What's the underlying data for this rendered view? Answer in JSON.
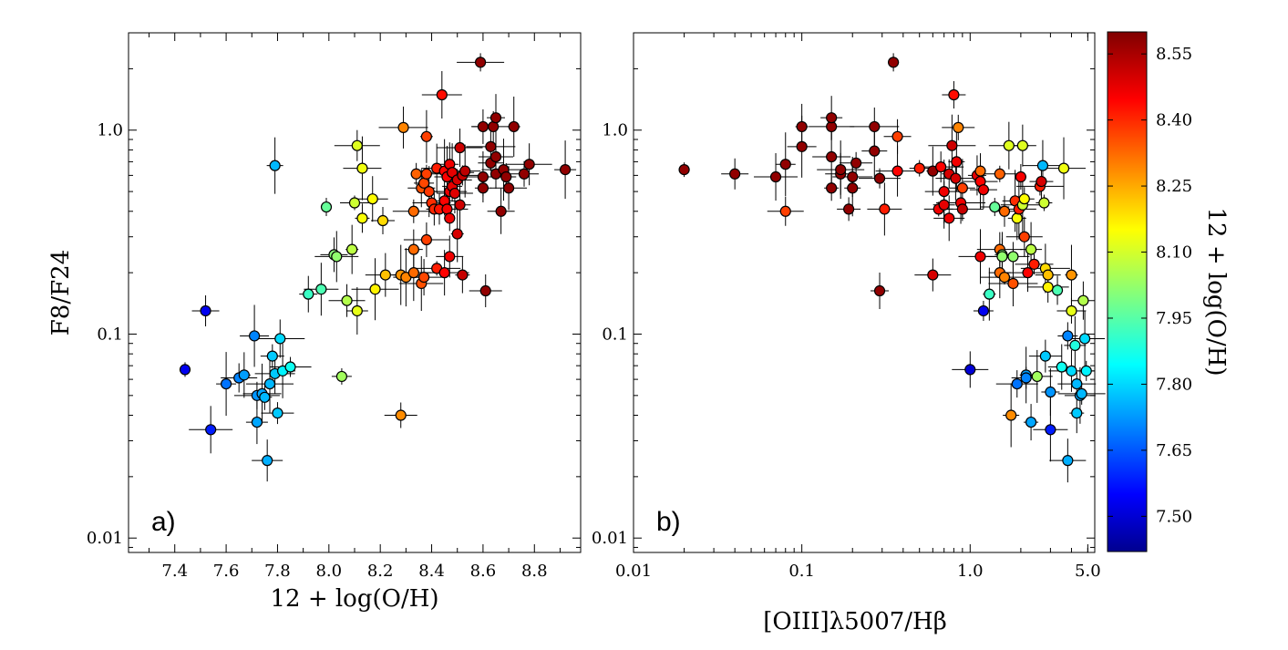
{
  "chart_data": [
    {
      "type": "scatter",
      "panel_label": "a)",
      "xlabel": "12 + log(O/H)",
      "ylabel": "F8/F24",
      "xscale": "linear",
      "yscale": "log",
      "xlim": [
        7.22,
        8.98
      ],
      "ylim": [
        0.0085,
        3.0
      ],
      "xticks": [
        "7.4",
        "7.6",
        "7.8",
        "8.0",
        "8.2",
        "8.4",
        "8.6",
        "8.8"
      ],
      "yticks": [
        "0.01",
        "0.1",
        "1.0"
      ],
      "grid": false,
      "points": [
        {
          "x": 7.44,
          "y": 0.067,
          "c": 7.55
        },
        {
          "x": 7.52,
          "y": 0.13,
          "c": 7.55
        },
        {
          "x": 7.54,
          "y": 0.034,
          "c": 7.6
        },
        {
          "x": 7.6,
          "y": 0.057,
          "c": 7.7
        },
        {
          "x": 7.65,
          "y": 0.061,
          "c": 7.72
        },
        {
          "x": 7.67,
          "y": 0.063,
          "c": 7.75
        },
        {
          "x": 7.71,
          "y": 0.098,
          "c": 7.72
        },
        {
          "x": 7.72,
          "y": 0.05,
          "c": 7.74
        },
        {
          "x": 7.72,
          "y": 0.037,
          "c": 7.76
        },
        {
          "x": 7.74,
          "y": 0.051,
          "c": 7.76
        },
        {
          "x": 7.75,
          "y": 0.049,
          "c": 7.78
        },
        {
          "x": 7.76,
          "y": 0.024,
          "c": 7.77
        },
        {
          "x": 7.77,
          "y": 0.057,
          "c": 7.78
        },
        {
          "x": 7.78,
          "y": 0.078,
          "c": 7.8
        },
        {
          "x": 7.79,
          "y": 0.064,
          "c": 7.8
        },
        {
          "x": 7.79,
          "y": 0.67,
          "c": 7.78
        },
        {
          "x": 7.8,
          "y": 0.041,
          "c": 7.8
        },
        {
          "x": 7.81,
          "y": 0.095,
          "c": 7.82
        },
        {
          "x": 7.82,
          "y": 0.066,
          "c": 7.85
        },
        {
          "x": 7.85,
          "y": 0.069,
          "c": 7.88
        },
        {
          "x": 7.92,
          "y": 0.157,
          "c": 7.93
        },
        {
          "x": 7.97,
          "y": 0.166,
          "c": 7.95
        },
        {
          "x": 7.99,
          "y": 0.42,
          "c": 7.98
        },
        {
          "x": 8.02,
          "y": 0.245,
          "c": 8.02
        },
        {
          "x": 8.03,
          "y": 0.24,
          "c": 8.03
        },
        {
          "x": 8.05,
          "y": 0.062,
          "c": 8.05
        },
        {
          "x": 8.07,
          "y": 0.146,
          "c": 8.07
        },
        {
          "x": 8.09,
          "y": 0.26,
          "c": 8.08
        },
        {
          "x": 8.1,
          "y": 0.44,
          "c": 8.1
        },
        {
          "x": 8.11,
          "y": 0.84,
          "c": 8.12
        },
        {
          "x": 8.11,
          "y": 0.13,
          "c": 8.13
        },
        {
          "x": 8.13,
          "y": 0.65,
          "c": 8.14
        },
        {
          "x": 8.13,
          "y": 0.37,
          "c": 8.15
        },
        {
          "x": 8.17,
          "y": 0.46,
          "c": 8.16
        },
        {
          "x": 8.18,
          "y": 0.166,
          "c": 8.17
        },
        {
          "x": 8.21,
          "y": 0.36,
          "c": 8.2
        },
        {
          "x": 8.22,
          "y": 0.195,
          "c": 8.23
        },
        {
          "x": 8.28,
          "y": 0.195,
          "c": 8.28
        },
        {
          "x": 8.28,
          "y": 0.04,
          "c": 8.29
        },
        {
          "x": 8.29,
          "y": 1.03,
          "c": 8.3
        },
        {
          "x": 8.3,
          "y": 0.19,
          "c": 8.3
        },
        {
          "x": 8.33,
          "y": 0.4,
          "c": 8.33
        },
        {
          "x": 8.33,
          "y": 0.26,
          "c": 8.33
        },
        {
          "x": 8.33,
          "y": 0.2,
          "c": 8.33
        },
        {
          "x": 8.34,
          "y": 0.61,
          "c": 8.34
        },
        {
          "x": 8.36,
          "y": 0.52,
          "c": 8.36
        },
        {
          "x": 8.36,
          "y": 0.177,
          "c": 8.36
        },
        {
          "x": 8.37,
          "y": 0.55,
          "c": 8.37
        },
        {
          "x": 8.37,
          "y": 0.19,
          "c": 8.37
        },
        {
          "x": 8.38,
          "y": 0.93,
          "c": 8.38
        },
        {
          "x": 8.38,
          "y": 0.61,
          "c": 8.38
        },
        {
          "x": 8.38,
          "y": 0.29,
          "c": 8.38
        },
        {
          "x": 8.39,
          "y": 0.5,
          "c": 8.39
        },
        {
          "x": 8.4,
          "y": 0.44,
          "c": 8.4
        },
        {
          "x": 8.41,
          "y": 0.41,
          "c": 8.41
        },
        {
          "x": 8.42,
          "y": 0.65,
          "c": 8.42
        },
        {
          "x": 8.42,
          "y": 0.21,
          "c": 8.42
        },
        {
          "x": 8.43,
          "y": 0.41,
          "c": 8.43
        },
        {
          "x": 8.44,
          "y": 1.49,
          "c": 8.44
        },
        {
          "x": 8.45,
          "y": 0.63,
          "c": 8.45
        },
        {
          "x": 8.45,
          "y": 0.45,
          "c": 8.45
        },
        {
          "x": 8.45,
          "y": 0.2,
          "c": 8.45
        },
        {
          "x": 8.46,
          "y": 0.59,
          "c": 8.46
        },
        {
          "x": 8.46,
          "y": 0.41,
          "c": 8.46
        },
        {
          "x": 8.47,
          "y": 0.68,
          "c": 8.47
        },
        {
          "x": 8.47,
          "y": 0.5,
          "c": 8.47
        },
        {
          "x": 8.47,
          "y": 0.37,
          "c": 8.47
        },
        {
          "x": 8.47,
          "y": 0.24,
          "c": 8.47
        },
        {
          "x": 8.48,
          "y": 0.62,
          "c": 8.48
        },
        {
          "x": 8.48,
          "y": 0.53,
          "c": 8.48
        },
        {
          "x": 8.49,
          "y": 0.49,
          "c": 8.49
        },
        {
          "x": 8.5,
          "y": 0.31,
          "c": 8.5
        },
        {
          "x": 8.5,
          "y": 0.57,
          "c": 8.5
        },
        {
          "x": 8.51,
          "y": 0.82,
          "c": 8.51
        },
        {
          "x": 8.51,
          "y": 0.43,
          "c": 8.51
        },
        {
          "x": 8.52,
          "y": 0.6,
          "c": 8.52
        },
        {
          "x": 8.52,
          "y": 0.195,
          "c": 8.52
        },
        {
          "x": 8.53,
          "y": 0.63,
          "c": 8.53
        },
        {
          "x": 8.59,
          "y": 2.15,
          "c": 8.58
        },
        {
          "x": 8.6,
          "y": 1.04,
          "c": 8.58
        },
        {
          "x": 8.6,
          "y": 0.59,
          "c": 8.58
        },
        {
          "x": 8.6,
          "y": 0.52,
          "c": 8.58
        },
        {
          "x": 8.61,
          "y": 0.163,
          "c": 8.58
        },
        {
          "x": 8.63,
          "y": 0.83,
          "c": 8.58
        },
        {
          "x": 8.63,
          "y": 0.69,
          "c": 8.58
        },
        {
          "x": 8.64,
          "y": 1.04,
          "c": 8.58
        },
        {
          "x": 8.65,
          "y": 1.15,
          "c": 8.58
        },
        {
          "x": 8.65,
          "y": 0.74,
          "c": 8.58
        },
        {
          "x": 8.65,
          "y": 0.61,
          "c": 8.58
        },
        {
          "x": 8.67,
          "y": 0.4,
          "c": 8.58
        },
        {
          "x": 8.68,
          "y": 0.64,
          "c": 8.58
        },
        {
          "x": 8.69,
          "y": 0.59,
          "c": 8.58
        },
        {
          "x": 8.7,
          "y": 0.52,
          "c": 8.58
        },
        {
          "x": 8.72,
          "y": 1.04,
          "c": 8.58
        },
        {
          "x": 8.76,
          "y": 0.61,
          "c": 8.58
        },
        {
          "x": 8.78,
          "y": 0.68,
          "c": 8.58
        },
        {
          "x": 8.92,
          "y": 0.64,
          "c": 8.58
        }
      ]
    },
    {
      "type": "scatter",
      "panel_label": "b)",
      "xlabel": "[OIII]λ5007/Hβ",
      "xscale": "log",
      "yscale": "log",
      "xlim": [
        0.01,
        5.5
      ],
      "ylim": [
        0.0085,
        3.0
      ],
      "xticks": [
        "0.01",
        "0.1",
        "1.0",
        "5.0"
      ],
      "yticks": [
        "0.01",
        "0.1",
        "1.0"
      ],
      "grid": false,
      "points": [
        {
          "x": 0.02,
          "y": 0.64,
          "c": 8.58
        },
        {
          "x": 0.04,
          "y": 0.61,
          "c": 8.58
        },
        {
          "x": 0.07,
          "y": 0.59,
          "c": 8.58
        },
        {
          "x": 0.08,
          "y": 0.68,
          "c": 8.58
        },
        {
          "x": 0.08,
          "y": 0.4,
          "c": 8.38
        },
        {
          "x": 0.1,
          "y": 1.04,
          "c": 8.58
        },
        {
          "x": 0.1,
          "y": 0.83,
          "c": 8.58
        },
        {
          "x": 0.15,
          "y": 1.04,
          "c": 8.58
        },
        {
          "x": 0.15,
          "y": 1.15,
          "c": 8.58
        },
        {
          "x": 0.15,
          "y": 0.74,
          "c": 8.58
        },
        {
          "x": 0.15,
          "y": 0.52,
          "c": 8.58
        },
        {
          "x": 0.17,
          "y": 0.61,
          "c": 8.58
        },
        {
          "x": 0.17,
          "y": 0.64,
          "c": 8.58
        },
        {
          "x": 0.19,
          "y": 0.41,
          "c": 8.58
        },
        {
          "x": 0.2,
          "y": 0.59,
          "c": 8.58
        },
        {
          "x": 0.2,
          "y": 0.52,
          "c": 8.58
        },
        {
          "x": 0.21,
          "y": 0.69,
          "c": 8.58
        },
        {
          "x": 0.27,
          "y": 1.04,
          "c": 8.58
        },
        {
          "x": 0.27,
          "y": 0.79,
          "c": 8.58
        },
        {
          "x": 0.29,
          "y": 0.58,
          "c": 8.58
        },
        {
          "x": 0.29,
          "y": 0.163,
          "c": 8.58
        },
        {
          "x": 0.31,
          "y": 0.41,
          "c": 8.42
        },
        {
          "x": 0.35,
          "y": 2.15,
          "c": 8.58
        },
        {
          "x": 0.37,
          "y": 0.93,
          "c": 8.38
        },
        {
          "x": 0.37,
          "y": 0.63,
          "c": 8.45
        },
        {
          "x": 0.5,
          "y": 0.65,
          "c": 8.42
        },
        {
          "x": 0.6,
          "y": 0.195,
          "c": 8.5
        },
        {
          "x": 0.6,
          "y": 0.63,
          "c": 8.58
        },
        {
          "x": 0.65,
          "y": 0.41,
          "c": 8.47
        },
        {
          "x": 0.67,
          "y": 0.66,
          "c": 8.45
        },
        {
          "x": 0.7,
          "y": 0.43,
          "c": 8.48
        },
        {
          "x": 0.7,
          "y": 0.5,
          "c": 8.47
        },
        {
          "x": 0.75,
          "y": 0.61,
          "c": 8.5
        },
        {
          "x": 0.75,
          "y": 0.37,
          "c": 8.47
        },
        {
          "x": 0.78,
          "y": 0.84,
          "c": 8.51
        },
        {
          "x": 0.8,
          "y": 1.49,
          "c": 8.44
        },
        {
          "x": 0.82,
          "y": 0.58,
          "c": 8.5
        },
        {
          "x": 0.83,
          "y": 0.7,
          "c": 8.47
        },
        {
          "x": 0.85,
          "y": 1.03,
          "c": 8.3
        },
        {
          "x": 0.88,
          "y": 0.44,
          "c": 8.47
        },
        {
          "x": 0.9,
          "y": 0.52,
          "c": 8.38
        },
        {
          "x": 0.9,
          "y": 0.41,
          "c": 8.52
        },
        {
          "x": 1.1,
          "y": 0.6,
          "c": 8.48
        },
        {
          "x": 1.15,
          "y": 0.56,
          "c": 8.45
        },
        {
          "x": 1.15,
          "y": 0.63,
          "c": 8.33
        },
        {
          "x": 1.2,
          "y": 0.51,
          "c": 8.47
        },
        {
          "x": 1.15,
          "y": 0.24,
          "c": 8.47
        },
        {
          "x": 1.2,
          "y": 0.13,
          "c": 7.55
        },
        {
          "x": 1.0,
          "y": 0.067,
          "c": 7.52
        },
        {
          "x": 1.3,
          "y": 0.157,
          "c": 7.93
        },
        {
          "x": 1.4,
          "y": 0.42,
          "c": 7.98
        },
        {
          "x": 1.5,
          "y": 0.26,
          "c": 8.33
        },
        {
          "x": 1.5,
          "y": 0.2,
          "c": 8.33
        },
        {
          "x": 1.5,
          "y": 0.61,
          "c": 8.34
        },
        {
          "x": 1.55,
          "y": 0.245,
          "c": 8.02
        },
        {
          "x": 1.55,
          "y": 0.24,
          "c": 8.03
        },
        {
          "x": 1.6,
          "y": 0.19,
          "c": 8.3
        },
        {
          "x": 1.6,
          "y": 0.4,
          "c": 8.33
        },
        {
          "x": 1.7,
          "y": 0.84,
          "c": 8.12
        },
        {
          "x": 1.75,
          "y": 0.04,
          "c": 8.29
        },
        {
          "x": 1.8,
          "y": 0.24,
          "c": 8.03
        },
        {
          "x": 1.8,
          "y": 0.177,
          "c": 8.36
        },
        {
          "x": 1.85,
          "y": 0.45,
          "c": 8.4
        },
        {
          "x": 1.9,
          "y": 0.057,
          "c": 7.7
        },
        {
          "x": 1.9,
          "y": 0.37,
          "c": 8.15
        },
        {
          "x": 1.95,
          "y": 0.41,
          "c": 8.42
        },
        {
          "x": 2.0,
          "y": 0.59,
          "c": 8.46
        },
        {
          "x": 2.05,
          "y": 0.84,
          "c": 8.12
        },
        {
          "x": 2.05,
          "y": 0.43,
          "c": 8.1
        },
        {
          "x": 2.1,
          "y": 0.46,
          "c": 8.16
        },
        {
          "x": 2.1,
          "y": 0.3,
          "c": 8.38
        },
        {
          "x": 2.15,
          "y": 0.063,
          "c": 7.75
        },
        {
          "x": 2.15,
          "y": 0.061,
          "c": 7.72
        },
        {
          "x": 2.2,
          "y": 0.2,
          "c": 8.45
        },
        {
          "x": 2.3,
          "y": 0.26,
          "c": 8.08
        },
        {
          "x": 2.4,
          "y": 0.22,
          "c": 8.42
        },
        {
          "x": 2.3,
          "y": 0.037,
          "c": 7.76
        },
        {
          "x": 2.5,
          "y": 0.062,
          "c": 8.05
        },
        {
          "x": 2.6,
          "y": 0.53,
          "c": 8.42
        },
        {
          "x": 2.65,
          "y": 0.56,
          "c": 8.5
        },
        {
          "x": 2.7,
          "y": 0.67,
          "c": 7.78
        },
        {
          "x": 2.75,
          "y": 0.44,
          "c": 8.1
        },
        {
          "x": 2.8,
          "y": 0.078,
          "c": 7.8
        },
        {
          "x": 2.8,
          "y": 0.21,
          "c": 8.2
        },
        {
          "x": 2.9,
          "y": 0.195,
          "c": 8.23
        },
        {
          "x": 2.9,
          "y": 0.17,
          "c": 8.17
        },
        {
          "x": 3.0,
          "y": 0.052,
          "c": 7.74
        },
        {
          "x": 3.0,
          "y": 0.034,
          "c": 7.6
        },
        {
          "x": 3.3,
          "y": 0.164,
          "c": 7.95
        },
        {
          "x": 3.5,
          "y": 0.069,
          "c": 7.88
        },
        {
          "x": 3.6,
          "y": 0.65,
          "c": 8.14
        },
        {
          "x": 3.8,
          "y": 0.098,
          "c": 7.72
        },
        {
          "x": 3.8,
          "y": 0.024,
          "c": 7.77
        },
        {
          "x": 4.0,
          "y": 0.195,
          "c": 8.28
        },
        {
          "x": 4.0,
          "y": 0.13,
          "c": 8.13
        },
        {
          "x": 4.0,
          "y": 0.066,
          "c": 7.82
        },
        {
          "x": 4.2,
          "y": 0.088,
          "c": 7.9
        },
        {
          "x": 4.3,
          "y": 0.057,
          "c": 7.78
        },
        {
          "x": 4.3,
          "y": 0.041,
          "c": 7.8
        },
        {
          "x": 4.5,
          "y": 0.05,
          "c": 7.76
        },
        {
          "x": 4.6,
          "y": 0.051,
          "c": 7.78
        },
        {
          "x": 4.7,
          "y": 0.146,
          "c": 8.07
        },
        {
          "x": 4.8,
          "y": 0.095,
          "c": 7.82
        },
        {
          "x": 4.9,
          "y": 0.066,
          "c": 7.85
        }
      ]
    }
  ],
  "colorbar": {
    "label": "12 + log(O/H)",
    "vmin": 7.42,
    "vmax": 8.6,
    "ticks": [
      "8.55",
      "8.40",
      "8.25",
      "8.10",
      "7.95",
      "7.80",
      "7.65",
      "7.50"
    ],
    "colormap": "jet"
  }
}
